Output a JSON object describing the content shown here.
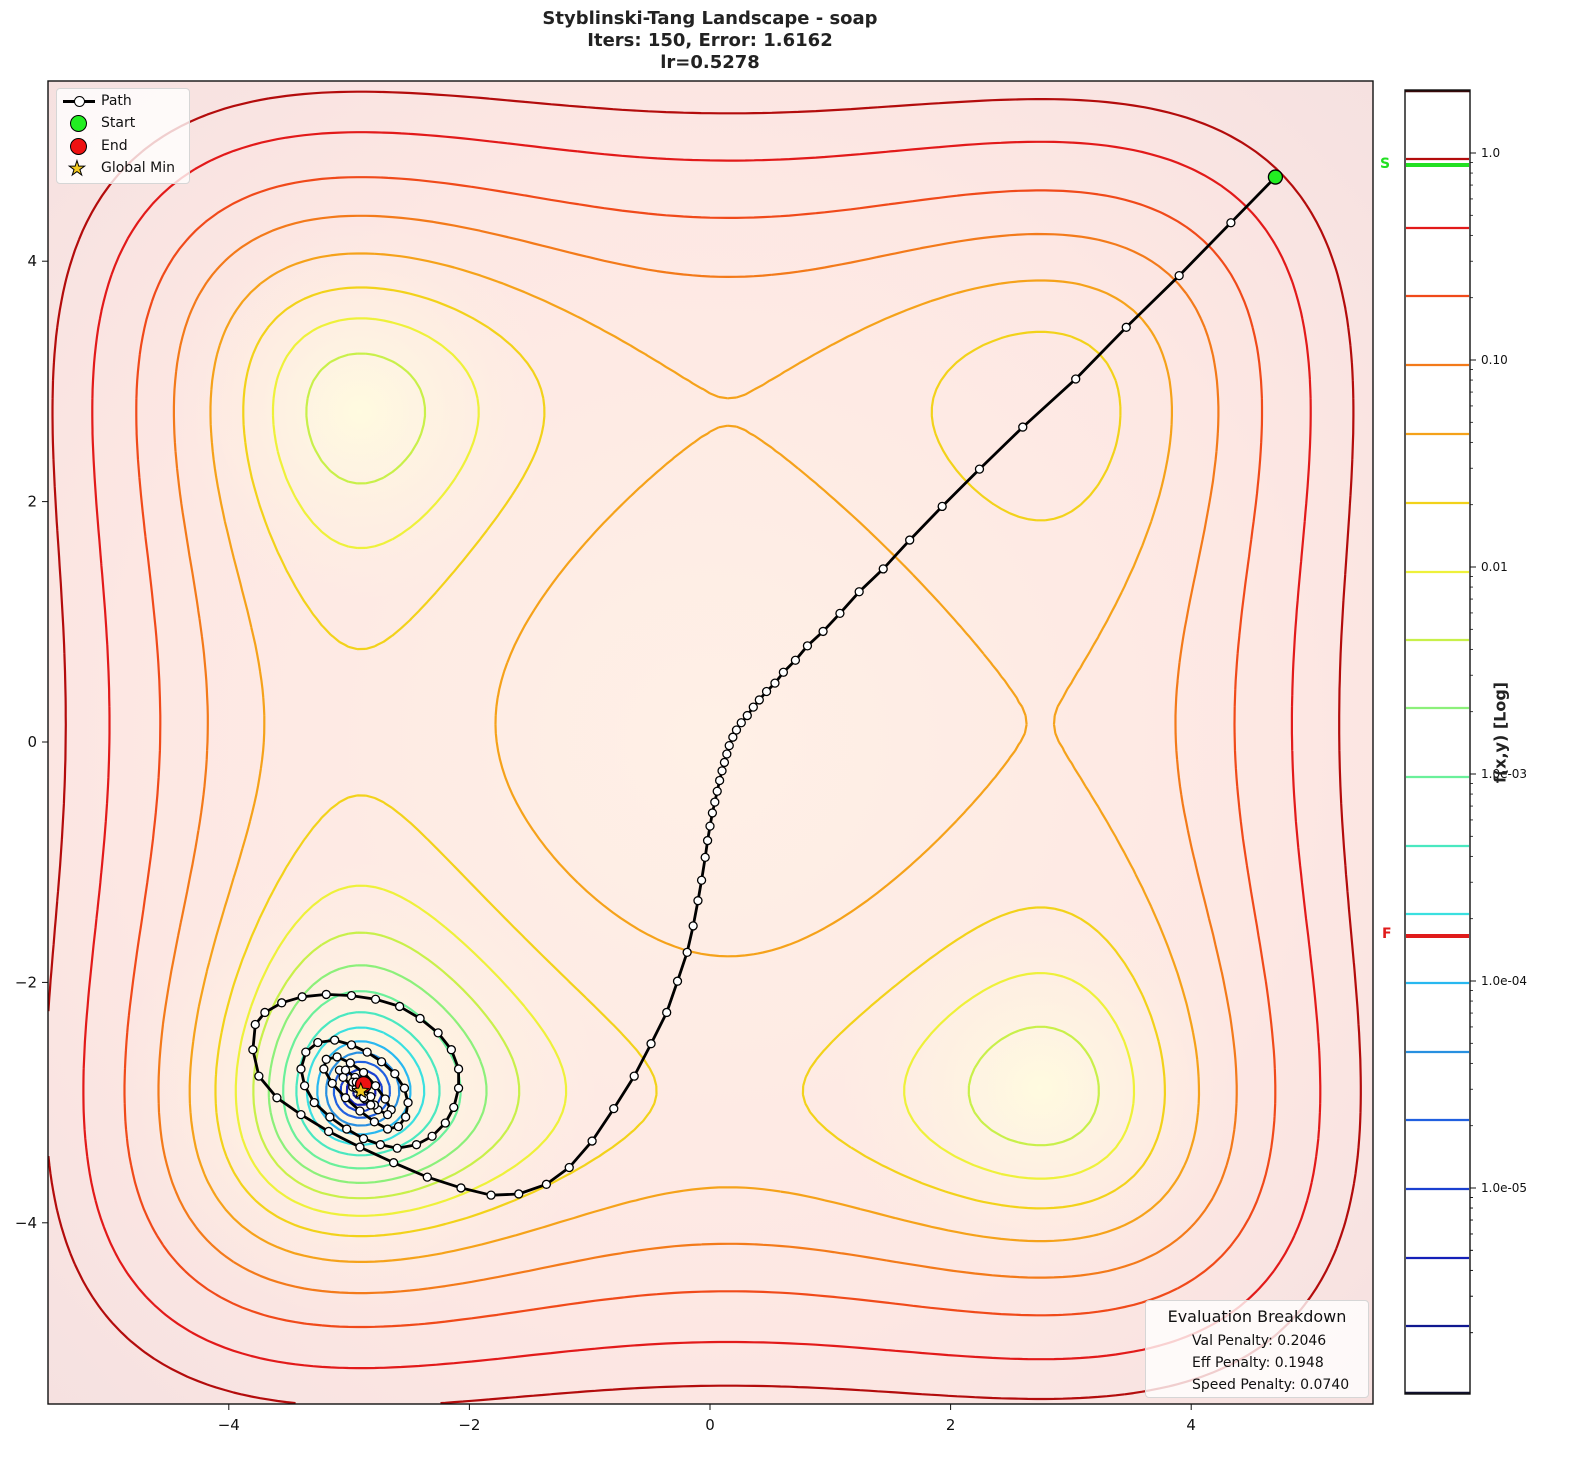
{
  "chart_data": {
    "type": "contour",
    "title": "Styblinski-Tang Landscape - soap",
    "subtitle_lines": [
      "Iters: 150, Error: 1.6162",
      "lr=0.5278"
    ],
    "xlabel": "",
    "ylabel": "",
    "xlim": [
      -5.5,
      5.5
    ],
    "ylim": [
      -5.5,
      5.5
    ],
    "x_ticks": [
      -4,
      -2,
      0,
      2,
      4
    ],
    "y_ticks": [
      -4,
      -2,
      0,
      2,
      4
    ],
    "grid": false,
    "legend_position": "upper left",
    "legend": [
      {
        "label": "Path",
        "symbol": "line-with-open-circle",
        "color": "#000000"
      },
      {
        "label": "Start",
        "symbol": "circle",
        "color": "#22ee22"
      },
      {
        "label": "End",
        "symbol": "circle",
        "color": "#ee1111"
      },
      {
        "label": "Global Min",
        "symbol": "star",
        "color": "#f2c81f"
      }
    ],
    "start_point": {
      "x": 4.7,
      "y": 4.7
    },
    "end_point": {
      "x": -2.88,
      "y": -2.85
    },
    "global_min": {
      "x": -2.903,
      "y": -2.903
    },
    "iterations": 150,
    "error": 1.6162,
    "learning_rate": 0.5278,
    "path_points_sampled": [
      [
        4.7,
        4.7
      ],
      [
        4.33,
        4.32
      ],
      [
        3.9,
        3.88
      ],
      [
        3.46,
        3.45
      ],
      [
        3.04,
        3.02
      ],
      [
        2.6,
        2.62
      ],
      [
        2.24,
        2.27
      ],
      [
        1.93,
        1.96
      ],
      [
        1.66,
        1.68
      ],
      [
        1.44,
        1.44
      ],
      [
        1.24,
        1.25
      ],
      [
        1.08,
        1.07
      ],
      [
        0.94,
        0.92
      ],
      [
        0.81,
        0.8
      ],
      [
        0.71,
        0.68
      ],
      [
        0.61,
        0.58
      ],
      [
        0.54,
        0.49
      ],
      [
        0.47,
        0.42
      ],
      [
        0.41,
        0.35
      ],
      [
        0.36,
        0.29
      ],
      [
        0.31,
        0.22
      ],
      [
        0.26,
        0.16
      ],
      [
        0.22,
        0.1
      ],
      [
        0.19,
        0.04
      ],
      [
        0.16,
        -0.03
      ],
      [
        0.14,
        -0.1
      ],
      [
        0.12,
        -0.17
      ],
      [
        0.1,
        -0.24
      ],
      [
        0.08,
        -0.32
      ],
      [
        0.06,
        -0.41
      ],
      [
        0.04,
        -0.5
      ],
      [
        0.02,
        -0.59
      ],
      [
        0.0,
        -0.7
      ],
      [
        -0.02,
        -0.82
      ],
      [
        -0.04,
        -0.96
      ],
      [
        -0.07,
        -1.15
      ],
      [
        -0.1,
        -1.32
      ],
      [
        -0.14,
        -1.53
      ],
      [
        -0.19,
        -1.75
      ],
      [
        -0.27,
        -1.99
      ],
      [
        -0.36,
        -2.25
      ],
      [
        -0.49,
        -2.51
      ],
      [
        -0.63,
        -2.78
      ],
      [
        -0.8,
        -3.05
      ],
      [
        -0.98,
        -3.32
      ],
      [
        -1.17,
        -3.54
      ],
      [
        -1.36,
        -3.68
      ],
      [
        -1.59,
        -3.76
      ],
      [
        -1.82,
        -3.77
      ],
      [
        -2.07,
        -3.71
      ],
      [
        -2.35,
        -3.62
      ],
      [
        -2.63,
        -3.5
      ],
      [
        -2.91,
        -3.37
      ],
      [
        -3.17,
        -3.24
      ],
      [
        -3.4,
        -3.1
      ],
      [
        -3.6,
        -2.96
      ],
      [
        -3.75,
        -2.78
      ],
      [
        -3.8,
        -2.56
      ],
      [
        -3.78,
        -2.35
      ],
      [
        -3.7,
        -2.25
      ],
      [
        -3.56,
        -2.17
      ],
      [
        -3.39,
        -2.12
      ],
      [
        -3.19,
        -2.1
      ],
      [
        -2.98,
        -2.11
      ],
      [
        -2.78,
        -2.14
      ],
      [
        -2.58,
        -2.2
      ],
      [
        -2.41,
        -2.3
      ],
      [
        -2.26,
        -2.42
      ],
      [
        -2.15,
        -2.56
      ],
      [
        -2.09,
        -2.72
      ],
      [
        -2.09,
        -2.88
      ],
      [
        -2.13,
        -3.04
      ],
      [
        -2.2,
        -3.17
      ],
      [
        -2.31,
        -3.28
      ],
      [
        -2.44,
        -3.35
      ],
      [
        -2.6,
        -3.38
      ],
      [
        -2.74,
        -3.35
      ],
      [
        -2.88,
        -3.3
      ],
      [
        -3.02,
        -3.22
      ],
      [
        -3.16,
        -3.12
      ],
      [
        -3.29,
        -3.0
      ],
      [
        -3.37,
        -2.86
      ],
      [
        -3.4,
        -2.72
      ],
      [
        -3.36,
        -2.58
      ],
      [
        -3.26,
        -2.5
      ],
      [
        -3.12,
        -2.48
      ],
      [
        -2.98,
        -2.52
      ],
      [
        -2.85,
        -2.58
      ],
      [
        -2.73,
        -2.66
      ],
      [
        -2.62,
        -2.76
      ],
      [
        -2.54,
        -2.88
      ],
      [
        -2.51,
        -3.0
      ],
      [
        -2.53,
        -3.12
      ],
      [
        -2.59,
        -3.2
      ],
      [
        -2.68,
        -3.22
      ],
      [
        -2.79,
        -3.16
      ],
      [
        -2.91,
        -3.07
      ],
      [
        -3.03,
        -2.96
      ],
      [
        -3.14,
        -2.84
      ],
      [
        -3.21,
        -2.72
      ],
      [
        -3.19,
        -2.64
      ],
      [
        -3.1,
        -2.62
      ],
      [
        -2.99,
        -2.67
      ],
      [
        -2.88,
        -2.75
      ],
      [
        -2.78,
        -2.86
      ],
      [
        -2.7,
        -2.97
      ],
      [
        -2.65,
        -3.06
      ],
      [
        -2.68,
        -3.1
      ],
      [
        -2.76,
        -3.06
      ],
      [
        -2.87,
        -2.97
      ],
      [
        -2.97,
        -2.87
      ],
      [
        -3.05,
        -2.79
      ],
      [
        -3.08,
        -2.73
      ],
      [
        -3.03,
        -2.73
      ],
      [
        -2.95,
        -2.79
      ],
      [
        -2.88,
        -2.87
      ],
      [
        -2.82,
        -2.95
      ],
      [
        -2.79,
        -3.02
      ],
      [
        -2.82,
        -3.02
      ],
      [
        -2.88,
        -2.96
      ],
      [
        -2.94,
        -2.88
      ],
      [
        -2.97,
        -2.83
      ],
      [
        -2.94,
        -2.83
      ],
      [
        -2.9,
        -2.87
      ],
      [
        -2.88,
        -2.85
      ]
    ],
    "contour_levels_normalized_log": [
      1.0,
      0.5,
      0.25,
      0.1,
      0.05,
      0.02,
      0.01,
      0.005,
      0.0025,
      0.001,
      0.0005,
      0.0002,
      0.0001,
      5e-05,
      2.5e-05,
      1e-05,
      5e-06,
      2.5e-06
    ],
    "colorbar": {
      "label": "f(x,y) [Log]",
      "scale": "log",
      "tick_labels": [
        "1.0",
        "0.10",
        "0.01",
        "1.0e-03",
        "1.0e-04",
        "1.0e-05"
      ],
      "markers": [
        {
          "label": "S",
          "color": "#22e022"
        },
        {
          "label": "F",
          "color": "#e01b1b"
        }
      ],
      "level_colors": [
        "#3a0a0a",
        "#b30c0c",
        "#e21a1a",
        "#f04a1a",
        "#f37a1a",
        "#f5a21a",
        "#f2d21a",
        "#eef13a",
        "#c8f04a",
        "#8cf07a",
        "#6af09a",
        "#4ae8c0",
        "#3ae0e0",
        "#28b8f0",
        "#2890e0",
        "#2060e0",
        "#1a40d0",
        "#1420b8",
        "#101890"
      ]
    },
    "evaluation_breakdown": {
      "title": "Evaluation Breakdown",
      "val_penalty": 0.2046,
      "eff_penalty": 0.1948,
      "speed_penalty": 0.074
    }
  },
  "header": {
    "title_line1": "Styblinski-Tang Landscape - soap",
    "title_line2": "Iters: 150, Error: 1.6162",
    "title_line3": "lr=0.5278"
  },
  "legend": {
    "path": "Path",
    "start": "Start",
    "end": "End",
    "global_min": "Global Min"
  },
  "evalbox": {
    "title": "Evaluation Breakdown",
    "val": "Val Penalty: 0.2046",
    "eff": "Eff Penalty: 0.1948",
    "speed": "Speed Penalty: 0.0740"
  },
  "colorbar": {
    "axis_title": "f(x,y) [Log]",
    "marker_start": "S",
    "marker_final": "F"
  }
}
